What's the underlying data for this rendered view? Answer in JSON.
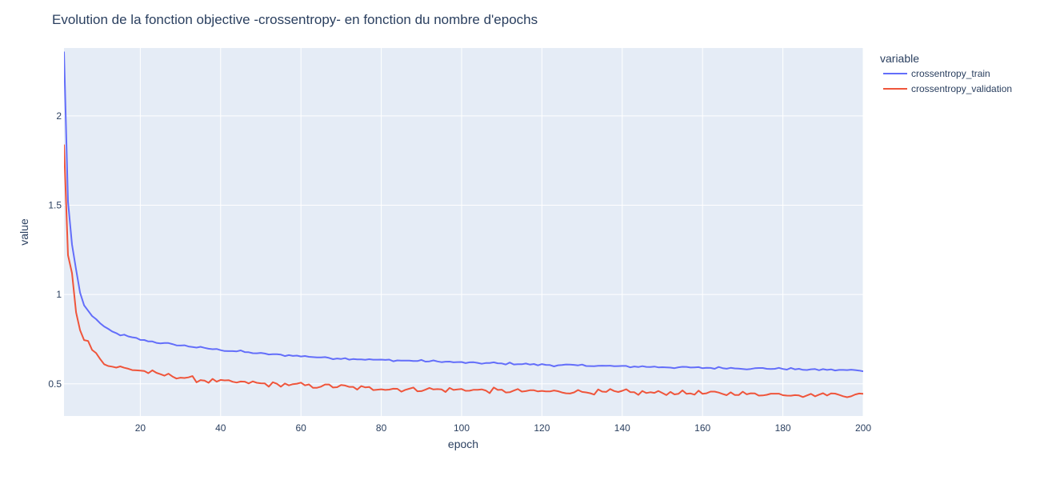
{
  "chart_data": {
    "type": "line",
    "title": "Evolution de la fonction objective -crossentropy- en fonction du nombre d'epochs",
    "xlabel": "epoch",
    "ylabel": "value",
    "xlim": [
      1,
      200
    ],
    "ylim": [
      0.32,
      2.38
    ],
    "xticks": [
      20,
      40,
      60,
      80,
      100,
      120,
      140,
      160,
      180,
      200
    ],
    "yticks": [
      0.5,
      1,
      1.5,
      2
    ],
    "ytick_labels": [
      "0.5",
      "1",
      "1.5",
      "2"
    ],
    "grid": true,
    "legend": {
      "title": "variable",
      "position": "right"
    },
    "colors": {
      "plot_bg": "#e5ecf6",
      "crossentropy_train": "#636efa",
      "crossentropy_validation": "#ef553b"
    },
    "series": [
      {
        "name": "crossentropy_train",
        "color": "#636efa",
        "keypoints": [
          [
            1,
            2.36
          ],
          [
            2,
            1.52
          ],
          [
            3,
            1.28
          ],
          [
            4,
            1.14
          ],
          [
            5,
            1.01
          ],
          [
            6,
            0.94
          ],
          [
            7,
            0.91
          ],
          [
            8,
            0.88
          ],
          [
            10,
            0.84
          ],
          [
            12,
            0.8
          ],
          [
            15,
            0.775
          ],
          [
            20,
            0.748
          ],
          [
            25,
            0.728
          ],
          [
            30,
            0.715
          ],
          [
            40,
            0.69
          ],
          [
            50,
            0.67
          ],
          [
            60,
            0.655
          ],
          [
            70,
            0.642
          ],
          [
            80,
            0.634
          ],
          [
            100,
            0.62
          ],
          [
            120,
            0.607
          ],
          [
            140,
            0.598
          ],
          [
            160,
            0.59
          ],
          [
            180,
            0.584
          ],
          [
            200,
            0.575
          ]
        ],
        "noise": 0.005
      },
      {
        "name": "crossentropy_validation",
        "color": "#ef553b",
        "keypoints": [
          [
            1,
            1.84
          ],
          [
            2,
            1.22
          ],
          [
            3,
            1.12
          ],
          [
            4,
            0.9
          ],
          [
            5,
            0.8
          ],
          [
            6,
            0.745
          ],
          [
            7,
            0.74
          ],
          [
            8,
            0.69
          ],
          [
            10,
            0.645
          ],
          [
            12,
            0.6
          ],
          [
            15,
            0.59
          ],
          [
            20,
            0.575
          ],
          [
            25,
            0.552
          ],
          [
            30,
            0.538
          ],
          [
            35,
            0.522
          ],
          [
            40,
            0.512
          ],
          [
            50,
            0.502
          ],
          [
            60,
            0.492
          ],
          [
            70,
            0.482
          ],
          [
            80,
            0.474
          ],
          [
            100,
            0.466
          ],
          [
            120,
            0.458
          ],
          [
            140,
            0.452
          ],
          [
            160,
            0.446
          ],
          [
            180,
            0.442
          ],
          [
            200,
            0.438
          ]
        ],
        "noise": 0.012
      }
    ]
  }
}
